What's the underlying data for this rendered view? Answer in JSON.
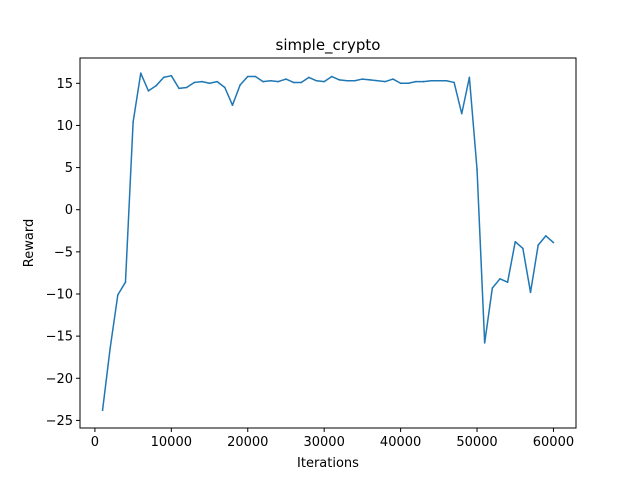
{
  "chart_data": {
    "type": "line",
    "title": "simple_crypto",
    "xlabel": "Iterations",
    "ylabel": "Reward",
    "xlim": [
      -1950,
      62950
    ],
    "ylim": [
      -25.9,
      18.0
    ],
    "xticks": [
      0,
      10000,
      20000,
      30000,
      40000,
      50000,
      60000
    ],
    "xtick_labels": [
      "0",
      "10000",
      "20000",
      "30000",
      "40000",
      "50000",
      "60000"
    ],
    "yticks": [
      -25,
      -20,
      -15,
      -10,
      -5,
      0,
      5,
      10,
      15
    ],
    "ytick_labels": [
      "−25",
      "−20",
      "−15",
      "−10",
      "−5",
      "0",
      "5",
      "10",
      "15"
    ],
    "grid": false,
    "series": [
      {
        "color": "#1f77b4",
        "x": [
          1000,
          2000,
          3000,
          4000,
          5000,
          6000,
          7000,
          8000,
          9000,
          10000,
          11000,
          12000,
          13000,
          14000,
          15000,
          16000,
          17000,
          18000,
          19000,
          20000,
          21000,
          22000,
          23000,
          24000,
          25000,
          26000,
          27000,
          28000,
          29000,
          30000,
          31000,
          32000,
          33000,
          34000,
          35000,
          36000,
          37000,
          38000,
          39000,
          40000,
          41000,
          42000,
          43000,
          44000,
          45000,
          46000,
          47000,
          48000,
          49000,
          50000,
          51000,
          52000,
          53000,
          54000,
          55000,
          56000,
          57000,
          58000,
          59000,
          60000
        ],
        "values": [
          -23.8,
          -16.4,
          -10.1,
          -8.6,
          10.4,
          16.2,
          14.1,
          14.7,
          15.7,
          15.9,
          14.4,
          14.5,
          15.1,
          15.2,
          15.0,
          15.2,
          14.5,
          12.4,
          14.8,
          15.8,
          15.8,
          15.2,
          15.3,
          15.2,
          15.5,
          15.1,
          15.1,
          15.7,
          15.3,
          15.2,
          15.8,
          15.4,
          15.3,
          15.3,
          15.5,
          15.4,
          15.3,
          15.2,
          15.5,
          15.0,
          15.0,
          15.2,
          15.2,
          15.3,
          15.3,
          15.3,
          15.1,
          11.4,
          15.7,
          4.8,
          -15.8,
          -9.3,
          -8.2,
          -8.6,
          -3.8,
          -4.6,
          -9.8,
          -4.2,
          -3.1,
          -3.9
        ]
      }
    ]
  }
}
